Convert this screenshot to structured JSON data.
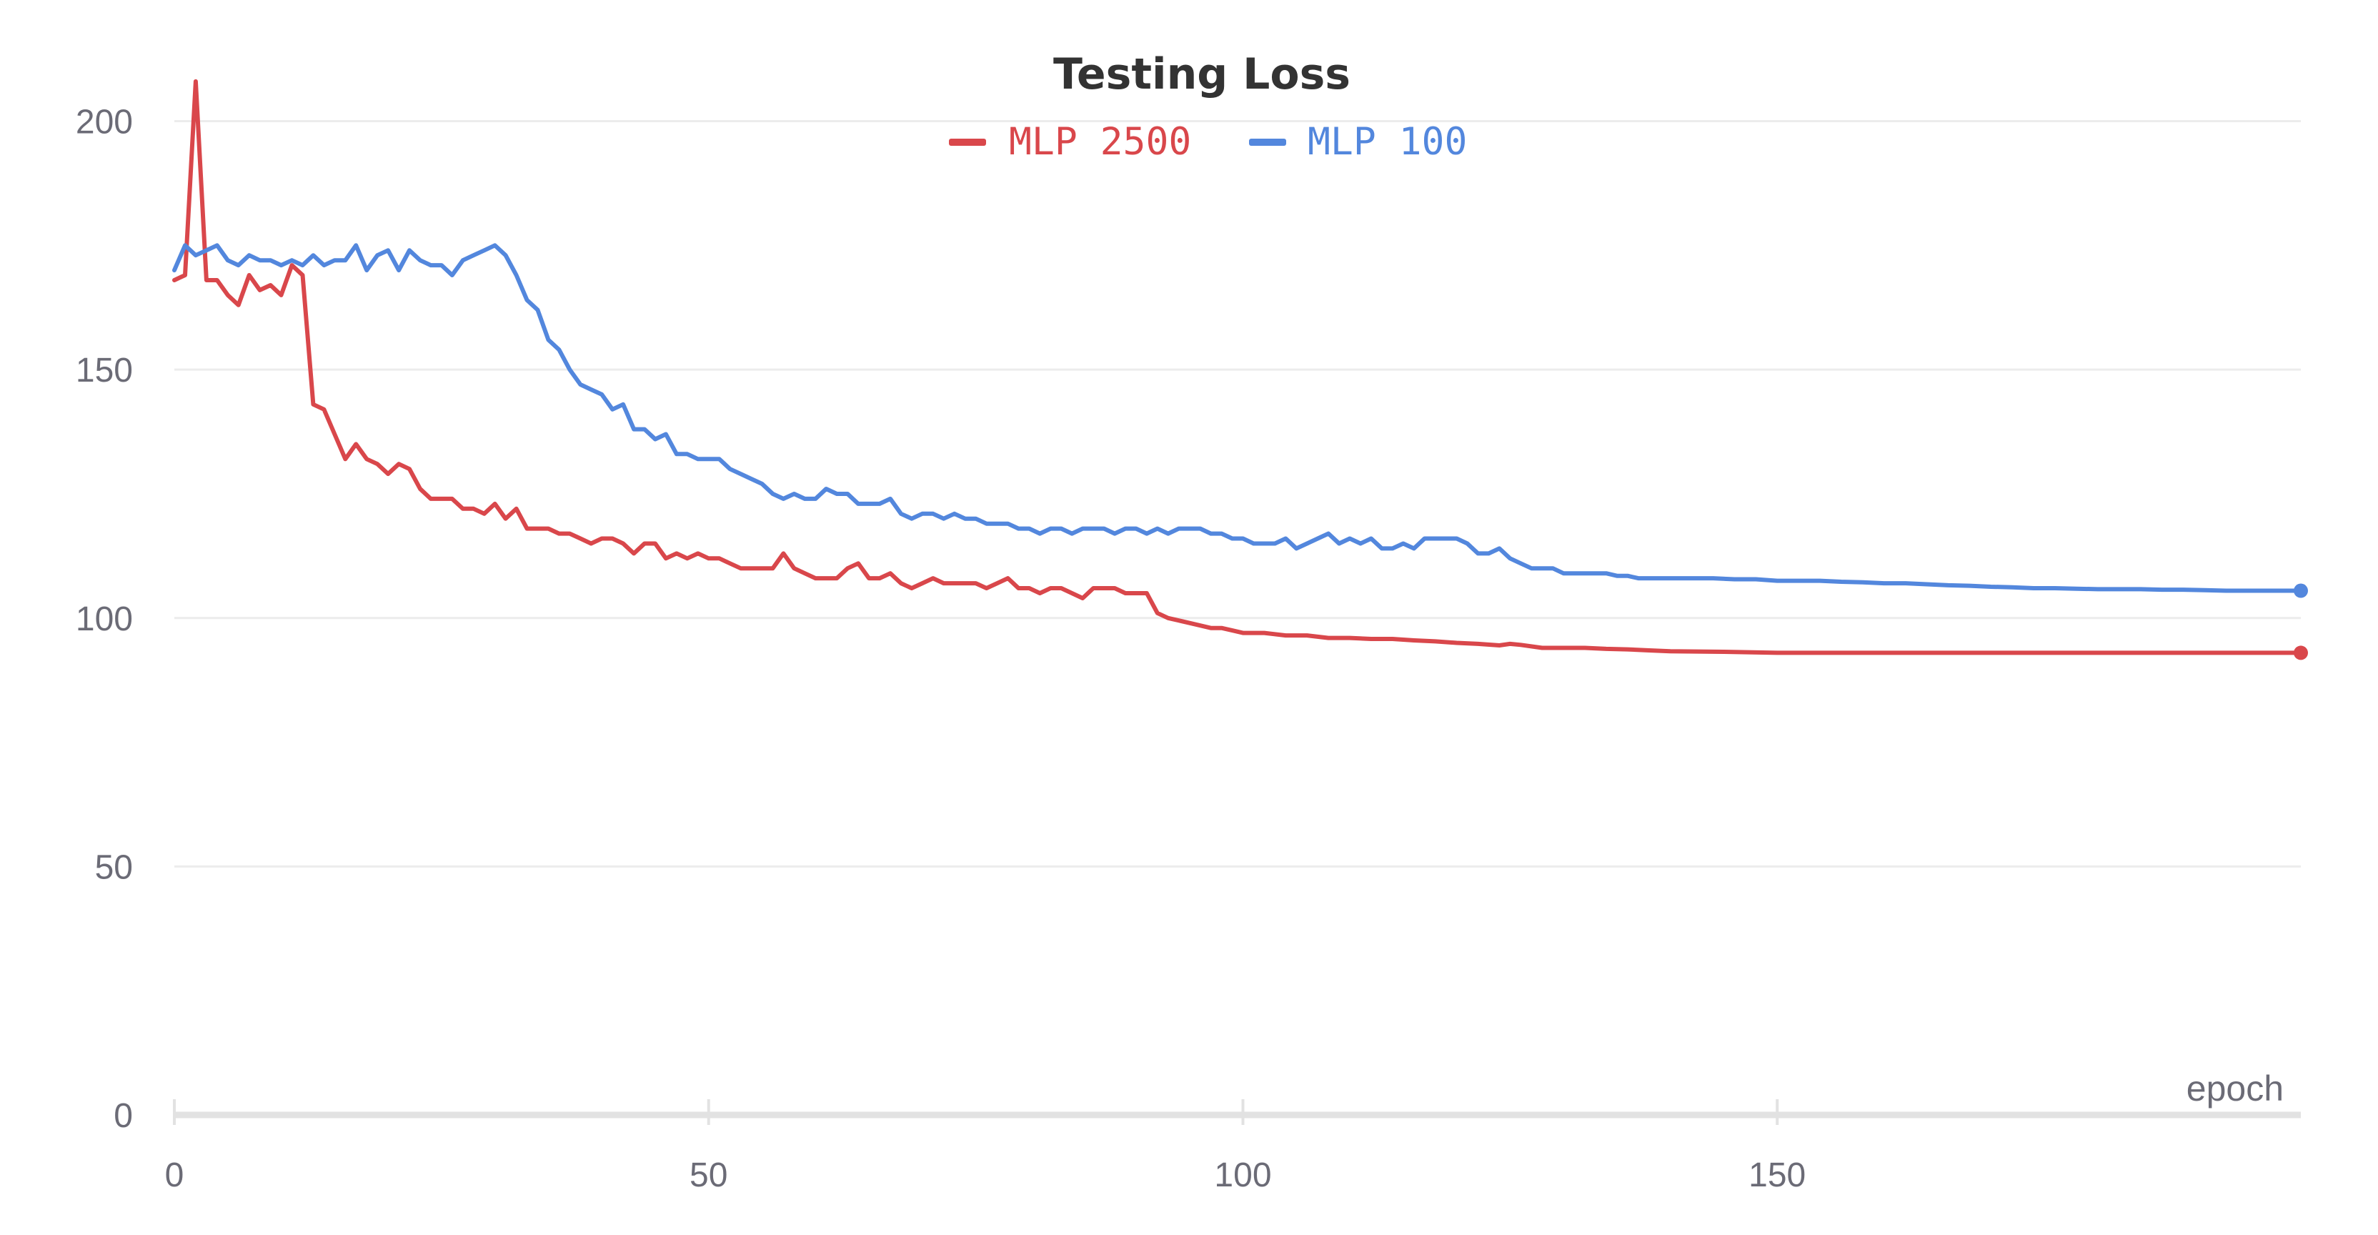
{
  "chart_data": {
    "type": "line",
    "title": "Testing Loss",
    "xlabel": "epoch",
    "ylabel": "",
    "xlim": [
      0,
      199
    ],
    "ylim": [
      0,
      210
    ],
    "x_ticks": [
      0,
      50,
      100,
      150
    ],
    "y_ticks": [
      0,
      50,
      100,
      150,
      200
    ],
    "grid": "horizontal",
    "legend_position": "top-center",
    "end_markers": true,
    "series": [
      {
        "name": "MLP 2500",
        "color": "#d9474b",
        "points": [
          [
            0,
            168
          ],
          [
            1,
            169
          ],
          [
            2,
            208
          ],
          [
            3,
            168
          ],
          [
            4,
            168
          ],
          [
            5,
            165
          ],
          [
            6,
            163
          ],
          [
            7,
            169
          ],
          [
            8,
            166
          ],
          [
            9,
            167
          ],
          [
            10,
            165
          ],
          [
            11,
            171
          ],
          [
            12,
            169
          ],
          [
            13,
            143
          ],
          [
            14,
            142
          ],
          [
            15,
            137
          ],
          [
            16,
            132
          ],
          [
            17,
            135
          ],
          [
            18,
            132
          ],
          [
            19,
            131
          ],
          [
            20,
            129
          ],
          [
            21,
            131
          ],
          [
            22,
            130
          ],
          [
            23,
            126
          ],
          [
            24,
            124
          ],
          [
            25,
            124
          ],
          [
            26,
            124
          ],
          [
            27,
            122
          ],
          [
            28,
            122
          ],
          [
            29,
            121
          ],
          [
            30,
            123
          ],
          [
            31,
            120
          ],
          [
            32,
            122
          ],
          [
            33,
            118
          ],
          [
            34,
            118
          ],
          [
            35,
            118
          ],
          [
            36,
            117
          ],
          [
            37,
            117
          ],
          [
            38,
            116
          ],
          [
            39,
            115
          ],
          [
            40,
            116
          ],
          [
            41,
            116
          ],
          [
            42,
            115
          ],
          [
            43,
            113
          ],
          [
            44,
            115
          ],
          [
            45,
            115
          ],
          [
            46,
            112
          ],
          [
            47,
            113
          ],
          [
            48,
            112
          ],
          [
            49,
            113
          ],
          [
            50,
            112
          ],
          [
            51,
            112
          ],
          [
            52,
            111
          ],
          [
            53,
            110
          ],
          [
            54,
            110
          ],
          [
            55,
            110
          ],
          [
            56,
            110
          ],
          [
            57,
            113
          ],
          [
            58,
            110
          ],
          [
            59,
            109
          ],
          [
            60,
            108
          ],
          [
            61,
            108
          ],
          [
            62,
            108
          ],
          [
            63,
            110
          ],
          [
            64,
            111
          ],
          [
            65,
            108
          ],
          [
            66,
            108
          ],
          [
            67,
            109
          ],
          [
            68,
            107
          ],
          [
            69,
            106
          ],
          [
            70,
            107
          ],
          [
            71,
            108
          ],
          [
            72,
            107
          ],
          [
            73,
            107
          ],
          [
            74,
            107
          ],
          [
            75,
            107
          ],
          [
            76,
            106
          ],
          [
            77,
            107
          ],
          [
            78,
            108
          ],
          [
            79,
            106
          ],
          [
            80,
            106
          ],
          [
            81,
            105
          ],
          [
            82,
            106
          ],
          [
            83,
            106
          ],
          [
            84,
            105
          ],
          [
            85,
            104
          ],
          [
            86,
            106
          ],
          [
            87,
            106
          ],
          [
            88,
            106
          ],
          [
            89,
            105
          ],
          [
            90,
            105
          ],
          [
            91,
            105
          ],
          [
            92,
            101
          ],
          [
            93,
            100
          ],
          [
            94,
            99.5
          ],
          [
            95,
            99
          ],
          [
            96,
            98.5
          ],
          [
            97,
            98
          ],
          [
            98,
            98
          ],
          [
            99,
            97.5
          ],
          [
            100,
            97
          ],
          [
            102,
            97
          ],
          [
            104,
            96.5
          ],
          [
            106,
            96.5
          ],
          [
            108,
            96
          ],
          [
            110,
            96
          ],
          [
            112,
            95.8
          ],
          [
            114,
            95.8
          ],
          [
            116,
            95.5
          ],
          [
            118,
            95.3
          ],
          [
            120,
            95
          ],
          [
            122,
            94.8
          ],
          [
            124,
            94.5
          ],
          [
            125,
            94.8
          ],
          [
            126,
            94.6
          ],
          [
            128,
            94
          ],
          [
            130,
            94
          ],
          [
            132,
            94
          ],
          [
            134,
            93.8
          ],
          [
            136,
            93.7
          ],
          [
            138,
            93.5
          ],
          [
            140,
            93.3
          ],
          [
            145,
            93.2
          ],
          [
            150,
            93
          ],
          [
            160,
            93
          ],
          [
            170,
            93
          ],
          [
            180,
            93
          ],
          [
            190,
            93
          ],
          [
            199,
            93
          ]
        ]
      },
      {
        "name": "MLP 100",
        "color": "#5387dd",
        "points": [
          [
            0,
            170
          ],
          [
            1,
            175
          ],
          [
            2,
            173
          ],
          [
            3,
            174
          ],
          [
            4,
            175
          ],
          [
            5,
            172
          ],
          [
            6,
            171
          ],
          [
            7,
            173
          ],
          [
            8,
            172
          ],
          [
            9,
            172
          ],
          [
            10,
            171
          ],
          [
            11,
            172
          ],
          [
            12,
            171
          ],
          [
            13,
            173
          ],
          [
            14,
            171
          ],
          [
            15,
            172
          ],
          [
            16,
            172
          ],
          [
            17,
            175
          ],
          [
            18,
            170
          ],
          [
            19,
            173
          ],
          [
            20,
            174
          ],
          [
            21,
            170
          ],
          [
            22,
            174
          ],
          [
            23,
            172
          ],
          [
            24,
            171
          ],
          [
            25,
            171
          ],
          [
            26,
            169
          ],
          [
            27,
            172
          ],
          [
            28,
            173
          ],
          [
            29,
            174
          ],
          [
            30,
            175
          ],
          [
            31,
            173
          ],
          [
            32,
            169
          ],
          [
            33,
            164
          ],
          [
            34,
            162
          ],
          [
            35,
            156
          ],
          [
            36,
            154
          ],
          [
            37,
            150
          ],
          [
            38,
            147
          ],
          [
            39,
            146
          ],
          [
            40,
            145
          ],
          [
            41,
            142
          ],
          [
            42,
            143
          ],
          [
            43,
            138
          ],
          [
            44,
            138
          ],
          [
            45,
            136
          ],
          [
            46,
            137
          ],
          [
            47,
            133
          ],
          [
            48,
            133
          ],
          [
            49,
            132
          ],
          [
            50,
            132
          ],
          [
            51,
            132
          ],
          [
            52,
            130
          ],
          [
            53,
            129
          ],
          [
            54,
            128
          ],
          [
            55,
            127
          ],
          [
            56,
            125
          ],
          [
            57,
            124
          ],
          [
            58,
            125
          ],
          [
            59,
            124
          ],
          [
            60,
            124
          ],
          [
            61,
            126
          ],
          [
            62,
            125
          ],
          [
            63,
            125
          ],
          [
            64,
            123
          ],
          [
            65,
            123
          ],
          [
            66,
            123
          ],
          [
            67,
            124
          ],
          [
            68,
            121
          ],
          [
            69,
            120
          ],
          [
            70,
            121
          ],
          [
            71,
            121
          ],
          [
            72,
            120
          ],
          [
            73,
            121
          ],
          [
            74,
            120
          ],
          [
            75,
            120
          ],
          [
            76,
            119
          ],
          [
            77,
            119
          ],
          [
            78,
            119
          ],
          [
            79,
            118
          ],
          [
            80,
            118
          ],
          [
            81,
            117
          ],
          [
            82,
            118
          ],
          [
            83,
            118
          ],
          [
            84,
            117
          ],
          [
            85,
            118
          ],
          [
            86,
            118
          ],
          [
            87,
            118
          ],
          [
            88,
            117
          ],
          [
            89,
            118
          ],
          [
            90,
            118
          ],
          [
            91,
            117
          ],
          [
            92,
            118
          ],
          [
            93,
            117
          ],
          [
            94,
            118
          ],
          [
            95,
            118
          ],
          [
            96,
            118
          ],
          [
            97,
            117
          ],
          [
            98,
            117
          ],
          [
            99,
            116
          ],
          [
            100,
            116
          ],
          [
            101,
            115
          ],
          [
            102,
            115
          ],
          [
            103,
            115
          ],
          [
            104,
            116
          ],
          [
            105,
            114
          ],
          [
            106,
            115
          ],
          [
            107,
            116
          ],
          [
            108,
            117
          ],
          [
            109,
            115
          ],
          [
            110,
            116
          ],
          [
            111,
            115
          ],
          [
            112,
            116
          ],
          [
            113,
            114
          ],
          [
            114,
            114
          ],
          [
            115,
            115
          ],
          [
            116,
            114
          ],
          [
            117,
            116
          ],
          [
            118,
            116
          ],
          [
            119,
            116
          ],
          [
            120,
            116
          ],
          [
            121,
            115
          ],
          [
            122,
            113
          ],
          [
            123,
            113
          ],
          [
            124,
            114
          ],
          [
            125,
            112
          ],
          [
            126,
            111
          ],
          [
            127,
            110
          ],
          [
            128,
            110
          ],
          [
            129,
            110
          ],
          [
            130,
            109
          ],
          [
            131,
            109
          ],
          [
            132,
            109
          ],
          [
            133,
            109
          ],
          [
            134,
            109
          ],
          [
            135,
            108.5
          ],
          [
            136,
            108.5
          ],
          [
            137,
            108
          ],
          [
            138,
            108
          ],
          [
            140,
            108
          ],
          [
            142,
            108
          ],
          [
            144,
            108
          ],
          [
            146,
            107.8
          ],
          [
            148,
            107.8
          ],
          [
            150,
            107.5
          ],
          [
            152,
            107.5
          ],
          [
            154,
            107.5
          ],
          [
            156,
            107.3
          ],
          [
            158,
            107.2
          ],
          [
            160,
            107
          ],
          [
            162,
            107
          ],
          [
            164,
            106.8
          ],
          [
            166,
            106.6
          ],
          [
            168,
            106.5
          ],
          [
            170,
            106.3
          ],
          [
            172,
            106.2
          ],
          [
            174,
            106
          ],
          [
            176,
            106
          ],
          [
            178,
            105.9
          ],
          [
            180,
            105.8
          ],
          [
            182,
            105.8
          ],
          [
            184,
            105.8
          ],
          [
            186,
            105.7
          ],
          [
            188,
            105.7
          ],
          [
            190,
            105.6
          ],
          [
            192,
            105.5
          ],
          [
            194,
            105.5
          ],
          [
            196,
            105.5
          ],
          [
            199,
            105.5
          ]
        ]
      }
    ]
  }
}
